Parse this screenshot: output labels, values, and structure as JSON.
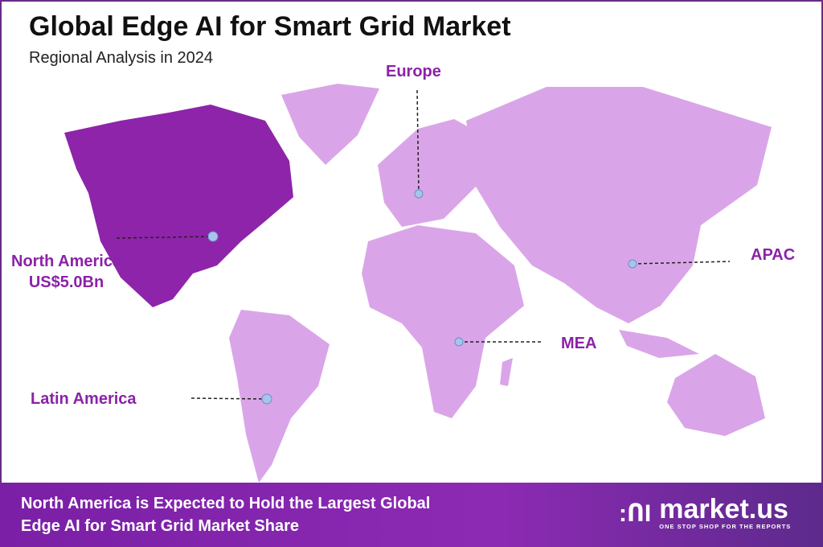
{
  "header": {
    "title": "Global Edge AI for Smart Grid Market",
    "subtitle": "Regional Analysis in 2024"
  },
  "regions": [
    {
      "name": "North America",
      "value": "US$5.0Bn",
      "highlighted": true
    },
    {
      "name": "Europe"
    },
    {
      "name": "APAC"
    },
    {
      "name": "MEA"
    },
    {
      "name": "Latin America"
    }
  ],
  "colors": {
    "highlight": "#8e24aa",
    "land": "#daa5e8",
    "label": "#8b22a8",
    "marker": "#a9c4ec"
  },
  "footer": {
    "line1": "North America is Expected to Hold the Largest Global",
    "line2": "Edge AI for Smart Grid Market Share"
  },
  "logo": {
    "name": "market.us",
    "tagline": "ONE STOP SHOP FOR THE REPORTS"
  }
}
